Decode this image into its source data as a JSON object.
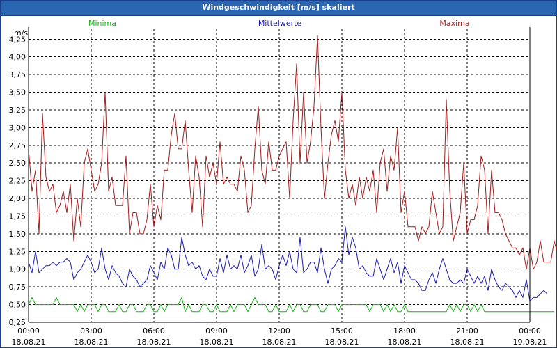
{
  "window": {
    "title": "Windgeschwindigkeit [m/s] skaliert"
  },
  "legend": [
    {
      "label": "Minima",
      "color": "#16b316"
    },
    {
      "label": "Mittelwerte",
      "color": "#1c1cb0"
    },
    {
      "label": "Maxima",
      "color": "#a01c1c"
    }
  ],
  "chart_data": {
    "type": "line",
    "title": "Windgeschwindigkeit [m/s] skaliert",
    "ylabel": "m/s",
    "xlabel": "",
    "ylim": [
      0.25,
      4.4
    ],
    "yticks": [
      "0,25",
      "0,50",
      "0,75",
      "1,00",
      "1,25",
      "1,50",
      "1,75",
      "2,00",
      "2,25",
      "2,50",
      "2,75",
      "3,00",
      "3,25",
      "3,50",
      "3,75",
      "4,00",
      "4,25"
    ],
    "xlim_hours": [
      0,
      24
    ],
    "xticks": [
      {
        "time": "00:00",
        "date": "18.08.21"
      },
      {
        "time": "03:00",
        "date": "18.08.21"
      },
      {
        "time": "06:00",
        "date": "18.08.21"
      },
      {
        "time": "09:00",
        "date": "18.08.21"
      },
      {
        "time": "12:00",
        "date": "18.08.21"
      },
      {
        "time": "15:00",
        "date": "18.08.21"
      },
      {
        "time": "18:00",
        "date": "18.08.21"
      },
      {
        "time": "21:00",
        "date": "18.08.21"
      },
      {
        "time": "00:00",
        "date": "19.08.21"
      }
    ],
    "grid": true,
    "sample_interval_minutes": 10,
    "series": [
      {
        "name": "Maxima",
        "color": "#a01c1c",
        "values": [
          2.7,
          2.1,
          2.4,
          1.5,
          3.2,
          2.3,
          2.1,
          2.2,
          1.8,
          1.9,
          2.1,
          1.8,
          2.2,
          1.4,
          2.0,
          1.6,
          2.5,
          2.7,
          2.4,
          2.1,
          2.2,
          2.5,
          3.5,
          2.1,
          2.3,
          1.9,
          1.9,
          1.9,
          2.6,
          1.5,
          1.8,
          1.8,
          1.5,
          1.5,
          1.7,
          2.2,
          1.6,
          1.9,
          1.7,
          2.4,
          2.4,
          2.9,
          3.2,
          2.7,
          2.7,
          3.1,
          2.4,
          1.8,
          2.6,
          2.3,
          1.6,
          2.6,
          2.3,
          2.5,
          2.2,
          2.8,
          2.2,
          2.3,
          2.2,
          2.2,
          2.1,
          2.6,
          2.4,
          1.8,
          1.9,
          2.7,
          3.3,
          2.4,
          2.2,
          2.8,
          2.4,
          2.4,
          2.6,
          2.7,
          2.8,
          2.0,
          3.1,
          3.9,
          2.5,
          3.5,
          2.5,
          2.8,
          3.3,
          4.3,
          3.0,
          2.0,
          2.5,
          2.9,
          3.1,
          2.8,
          3.5,
          2.4,
          2.0,
          2.2,
          1.9,
          2.3,
          2.0,
          2.3,
          2.1,
          2.4,
          1.8,
          2.5,
          2.7,
          2.1,
          2.6,
          2.4,
          3.0,
          1.8,
          2.1,
          1.6,
          1.6,
          1.6,
          1.4,
          1.6,
          1.5,
          1.6,
          2.1,
          1.8,
          1.5,
          1.6,
          3.4,
          2.1,
          1.4,
          1.6,
          1.8,
          2.5,
          1.5,
          1.7,
          1.7,
          1.9,
          2.6,
          2.4,
          1.5,
          2.4,
          1.8,
          1.8,
          1.7,
          1.5,
          1.4,
          1.3,
          1.3,
          1.2,
          1.3,
          1.0,
          1.3,
          1.0,
          1.1,
          1.4,
          1.1,
          1.1,
          1.1,
          1.4,
          1.2
        ]
      },
      {
        "name": "Mittelwerte",
        "color": "#1c1cb0",
        "values": [
          1.1,
          0.95,
          1.25,
          0.95,
          1.0,
          1.05,
          1.05,
          1.1,
          1.05,
          1.1,
          1.1,
          1.15,
          1.1,
          0.85,
          0.95,
          1.0,
          1.1,
          1.2,
          1.1,
          0.95,
          1.0,
          1.3,
          1.0,
          0.85,
          1.05,
          0.95,
          0.9,
          0.8,
          0.75,
          1.0,
          0.9,
          0.85,
          0.75,
          0.8,
          0.85,
          1.05,
          0.95,
          0.85,
          1.1,
          1.0,
          1.3,
          1.2,
          1.0,
          1.0,
          1.45,
          1.2,
          1.05,
          1.1,
          1.0,
          1.05,
          0.9,
          0.85,
          1.0,
          0.9,
          0.9,
          1.15,
          0.95,
          1.2,
          1.0,
          1.05,
          1.0,
          1.2,
          0.95,
          1.05,
          1.2,
          0.9,
          1.0,
          1.35,
          1.0,
          1.05,
          1.0,
          0.85,
          1.05,
          1.2,
          1.05,
          1.25,
          1.0,
          0.95,
          1.45,
          0.95,
          1.0,
          1.1,
          1.1,
          0.95,
          1.3,
          1.0,
          0.8,
          1.0,
          1.05,
          1.15,
          1.1,
          1.6,
          1.2,
          1.45,
          1.3,
          1.0,
          1.05,
          0.95,
          0.9,
          0.9,
          1.15,
          1.0,
          0.85,
          1.0,
          1.15,
          0.95,
          1.1,
          0.8,
          1.05,
          0.95,
          0.85,
          0.85,
          0.8,
          0.7,
          0.7,
          0.85,
          0.95,
          0.8,
          1.0,
          1.15,
          1.0,
          0.85,
          0.8,
          0.8,
          0.85,
          0.8,
          1.0,
          0.9,
          0.8,
          0.9,
          0.8,
          0.9,
          0.7,
          1.0,
          0.85,
          0.75,
          0.7,
          0.8,
          0.75,
          0.7,
          0.6,
          0.7,
          0.6,
          0.85,
          0.55,
          0.6,
          0.6,
          0.65,
          0.7,
          0.65
        ]
      },
      {
        "name": "Minima",
        "color": "#16b316",
        "values": [
          0.5,
          0.6,
          0.5,
          0.5,
          0.5,
          0.5,
          0.5,
          0.5,
          0.6,
          0.5,
          0.5,
          0.5,
          0.5,
          0.5,
          0.4,
          0.5,
          0.4,
          0.5,
          0.5,
          0.5,
          0.4,
          0.5,
          0.5,
          0.4,
          0.4,
          0.4,
          0.5,
          0.4,
          0.4,
          0.5,
          0.5,
          0.4,
          0.4,
          0.4,
          0.5,
          0.5,
          0.4,
          0.4,
          0.5,
          0.4,
          0.5,
          0.5,
          0.5,
          0.5,
          0.6,
          0.4,
          0.5,
          0.4,
          0.4,
          0.4,
          0.5,
          0.5,
          0.4,
          0.4,
          0.5,
          0.4,
          0.4,
          0.4,
          0.5,
          0.4,
          0.5,
          0.5,
          0.5,
          0.4,
          0.5,
          0.6,
          0.5,
          0.5,
          0.5,
          0.4,
          0.4,
          0.5,
          0.4,
          0.4,
          0.4,
          0.5,
          0.4,
          0.5,
          0.5,
          0.4,
          0.4,
          0.5,
          0.5,
          0.5,
          0.4,
          0.4,
          0.5,
          0.5,
          0.5,
          0.4,
          0.5,
          0.5,
          0.5,
          0.5,
          0.5,
          0.5,
          0.5,
          0.5,
          0.4,
          0.5,
          0.5,
          0.5,
          0.4,
          0.5,
          0.4,
          0.5,
          0.4,
          0.4,
          0.5,
          0.4,
          0.4,
          0.4,
          0.4,
          0.4,
          0.4,
          0.4,
          0.4,
          0.4,
          0.4,
          0.4,
          0.4,
          0.5,
          0.4,
          0.5,
          0.4,
          0.5,
          0.5,
          0.4,
          0.5,
          0.4,
          0.5,
          0.4,
          0.4,
          0.4,
          0.4,
          0.4,
          0.4,
          0.4,
          0.4,
          0.4,
          0.4,
          0.4,
          0.4,
          0.4,
          0.4,
          0.4,
          0.4,
          0.4,
          0.4,
          0.4,
          0.4,
          0.4
        ]
      }
    ]
  }
}
